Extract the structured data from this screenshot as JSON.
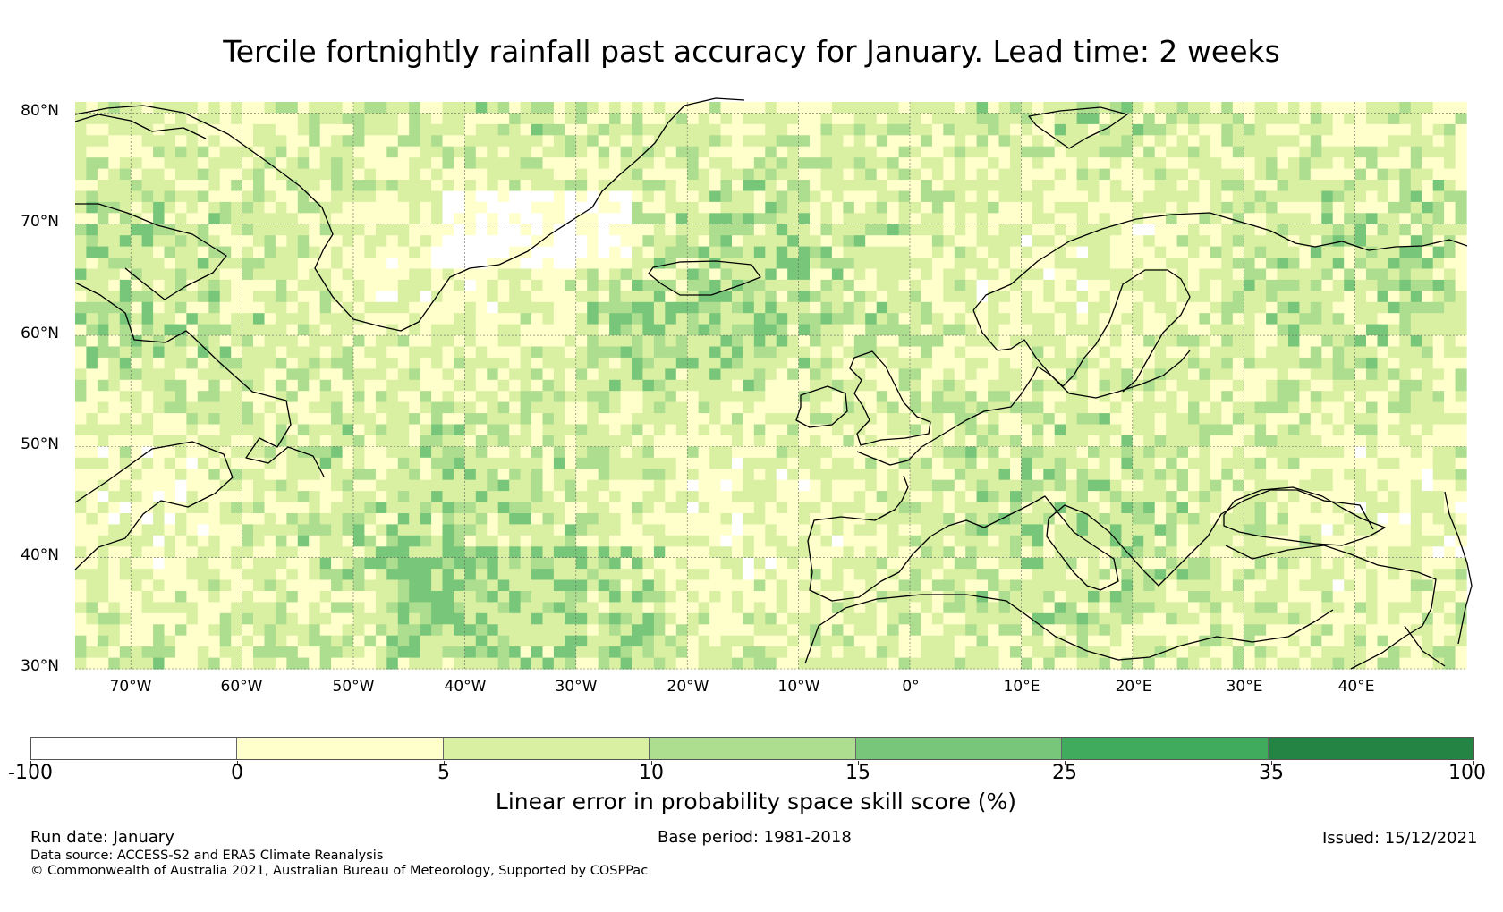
{
  "title": "Tercile fortnightly rainfall past accuracy for January. Lead time: 2 weeks",
  "map": {
    "projection": "PlateCarree",
    "lon_range": [
      -75,
      50
    ],
    "lat_range": [
      30,
      81
    ],
    "lat_ticks": [
      {
        "value": 80,
        "label": "80°N"
      },
      {
        "value": 70,
        "label": "70°N"
      },
      {
        "value": 60,
        "label": "60°N"
      },
      {
        "value": 50,
        "label": "50°N"
      },
      {
        "value": 40,
        "label": "40°N"
      },
      {
        "value": 30,
        "label": "30°N"
      }
    ],
    "lon_ticks": [
      {
        "value": -70,
        "label": "70°W"
      },
      {
        "value": -60,
        "label": "60°W"
      },
      {
        "value": -50,
        "label": "50°W"
      },
      {
        "value": -40,
        "label": "40°W"
      },
      {
        "value": -30,
        "label": "30°W"
      },
      {
        "value": -20,
        "label": "20°W"
      },
      {
        "value": -10,
        "label": "10°W"
      },
      {
        "value": 0,
        "label": "0°"
      },
      {
        "value": 10,
        "label": "10°E"
      },
      {
        "value": 20,
        "label": "20°E"
      },
      {
        "value": 30,
        "label": "30°E"
      },
      {
        "value": 40,
        "label": "40°E"
      }
    ],
    "gridlines": true
  },
  "colorbar": {
    "title": "Linear error in probability space skill score (%)",
    "bounds": [
      -100,
      0,
      5,
      10,
      15,
      25,
      35,
      100
    ],
    "tick_labels": [
      "-100",
      "0",
      "5",
      "10",
      "15",
      "25",
      "35",
      "100"
    ],
    "colors": [
      "#ffffff",
      "#ffffcc",
      "#d9f0a3",
      "#addd8e",
      "#78c679",
      "#41ab5d",
      "#238443"
    ]
  },
  "footer": {
    "run_date": "Run date: January",
    "base_period": "Base period: 1981-2018",
    "issued": "Issued: 15/12/2021",
    "data_source": "Data source: ACCESS-S2 and ERA5 Climate Reanalysis",
    "copyright": "© Commonwealth of Australia 2021, Australian Bureau of Meteorology, Supported by COSPPac"
  }
}
